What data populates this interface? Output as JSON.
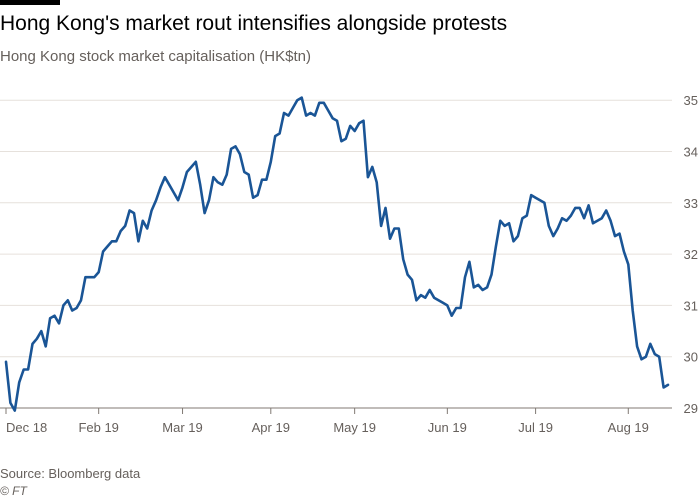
{
  "title": "Hong Kong's market rout intensifies alongside protests",
  "subtitle": "Hong Kong stock market capitalisation (HK$tn)",
  "source": "Source: Bloomberg data",
  "credit": "© FT",
  "colors": {
    "line": "#1a5596",
    "grid": "#e6e1dc",
    "axis": "#807973",
    "text": "#66605c"
  },
  "chart_data": {
    "type": "line",
    "title": "Hong Kong's market rout intensifies alongside protests",
    "ylabel": "Hong Kong stock market capitalisation (HK$tn)",
    "xlabel": "",
    "ylim": [
      29,
      35.3
    ],
    "yticks": [
      29,
      30,
      31,
      32,
      33,
      34,
      35
    ],
    "x_month_ticks": [
      {
        "label": "Dec 18",
        "index": 0
      },
      {
        "label": "Feb 19",
        "index": 21
      },
      {
        "label": "Mar 19",
        "index": 40
      },
      {
        "label": "Apr 19",
        "index": 60
      },
      {
        "label": "May 19",
        "index": 79
      },
      {
        "label": "Jun 19",
        "index": 100
      },
      {
        "label": "Jul 19",
        "index": 120
      },
      {
        "label": "Aug 19",
        "index": 141
      }
    ],
    "series": [
      {
        "name": "Market capitalisation (HK$tn)",
        "values": [
          29.9,
          29.1,
          28.95,
          29.5,
          29.75,
          29.75,
          30.25,
          30.35,
          30.5,
          30.2,
          30.75,
          30.8,
          30.65,
          31.0,
          31.1,
          30.9,
          30.95,
          31.1,
          31.55,
          31.55,
          31.55,
          31.65,
          32.05,
          32.15,
          32.25,
          32.25,
          32.45,
          32.55,
          32.85,
          32.8,
          32.25,
          32.65,
          32.5,
          32.85,
          33.05,
          33.3,
          33.5,
          33.35,
          33.2,
          33.05,
          33.3,
          33.6,
          33.7,
          33.8,
          33.35,
          32.8,
          33.05,
          33.5,
          33.4,
          33.35,
          33.55,
          34.05,
          34.1,
          33.95,
          33.6,
          33.55,
          33.1,
          33.15,
          33.45,
          33.45,
          33.8,
          34.3,
          34.35,
          34.75,
          34.7,
          34.85,
          35.0,
          35.05,
          34.7,
          34.75,
          34.7,
          34.95,
          34.95,
          34.8,
          34.65,
          34.6,
          34.2,
          34.25,
          34.5,
          34.4,
          34.55,
          34.6,
          33.5,
          33.7,
          33.4,
          32.55,
          32.9,
          32.3,
          32.5,
          32.5,
          31.9,
          31.6,
          31.5,
          31.1,
          31.2,
          31.15,
          31.3,
          31.15,
          31.1,
          31.05,
          31.0,
          30.8,
          30.95,
          30.95,
          31.55,
          31.85,
          31.35,
          31.4,
          31.3,
          31.35,
          31.6,
          32.15,
          32.65,
          32.55,
          32.6,
          32.25,
          32.35,
          32.7,
          32.75,
          33.15,
          33.1,
          33.05,
          33.0,
          32.55,
          32.35,
          32.5,
          32.7,
          32.65,
          32.75,
          32.9,
          32.9,
          32.7,
          32.95,
          32.6,
          32.65,
          32.7,
          32.85,
          32.65,
          32.35,
          32.4,
          32.05,
          31.8,
          30.9,
          30.2,
          29.95,
          30.0,
          30.25,
          30.05,
          30.0,
          29.4,
          29.45
        ]
      }
    ],
    "legend": "none",
    "grid": true
  }
}
